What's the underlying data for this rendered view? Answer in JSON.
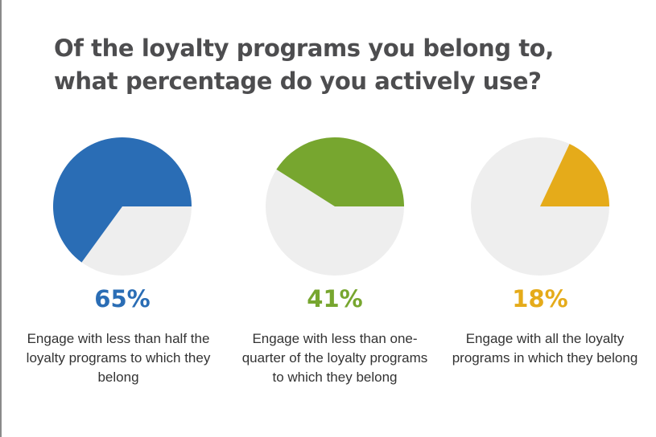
{
  "title_lines": [
    "Of the loyalty programs you belong to,",
    "what percentage do you actively use?"
  ],
  "chart_data": [
    {
      "type": "pie",
      "title": "Of the loyalty programs you belong to, what percentage do you actively use?",
      "value": 65,
      "label": "65%",
      "description": "Engage with less than half the loyalty programs to which they belong",
      "color": "#2a6db5",
      "background_color": "#eeeeee"
    },
    {
      "type": "pie",
      "value": 41,
      "label": "41%",
      "description": "Engage with less than one-quarter of the loyalty programs to which they belong",
      "color": "#77a62f",
      "background_color": "#eeeeee"
    },
    {
      "type": "pie",
      "value": 18,
      "label": "18%",
      "description": "Engage with all the loyalty programs in which they belong",
      "color": "#e5ab1a",
      "background_color": "#eeeeee"
    }
  ]
}
